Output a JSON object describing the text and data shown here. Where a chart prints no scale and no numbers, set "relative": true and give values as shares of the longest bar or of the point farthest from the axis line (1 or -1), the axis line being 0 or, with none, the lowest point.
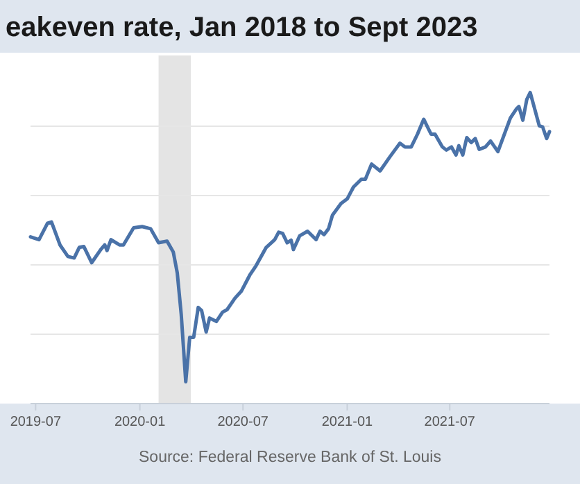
{
  "chart_data": {
    "type": "line",
    "title": "eakeven rate, Jan 2018 to Sept 2023",
    "relative": true,
    "grid": "y",
    "annotations": [
      "Source: Federal Reserve Bank of St. Louis"
    ],
    "xlim": [
      "2019-06-22",
      "2021-12-24"
    ],
    "xticks": [
      {
        "value": "2019-07-01",
        "label": "2019-07"
      },
      {
        "value": "2020-01-01",
        "label": "2020-01"
      },
      {
        "value": "2020-07-01",
        "label": "2020-07"
      },
      {
        "value": "2021-01-01",
        "label": "2021-01"
      },
      {
        "value": "2021-07-01",
        "label": "2021-07"
      }
    ],
    "bands": [
      {
        "axis": "x",
        "from": "2020-02-03",
        "to": "2020-03-31",
        "color": "#e4e4e4"
      }
    ],
    "series": [
      {
        "color": "#4a72a8",
        "x": [
          "2019-06-22",
          "2019-07-07",
          "2019-07-22",
          "2019-07-29",
          "2019-08-13",
          "2019-08-27",
          "2019-09-07",
          "2019-09-16",
          "2019-09-24",
          "2019-10-08",
          "2019-10-24",
          "2019-10-31",
          "2019-11-04",
          "2019-11-11",
          "2019-11-26",
          "2019-12-03",
          "2019-12-21",
          "2020-01-05",
          "2020-01-20",
          "2020-02-03",
          "2020-02-18",
          "2020-02-29",
          "2020-03-07",
          "2020-03-14",
          "2020-03-22",
          "2020-03-29",
          "2020-04-05",
          "2020-04-13",
          "2020-04-19",
          "2020-04-27",
          "2020-05-03",
          "2020-05-15",
          "2020-05-26",
          "2020-06-03",
          "2020-06-17",
          "2020-06-28",
          "2020-07-13",
          "2020-07-24",
          "2020-08-11",
          "2020-08-26",
          "2020-09-02",
          "2020-09-09",
          "2020-09-17",
          "2020-09-24",
          "2020-09-28",
          "2020-10-09",
          "2020-10-23",
          "2020-11-07",
          "2020-11-14",
          "2020-11-21",
          "2020-11-29",
          "2020-12-06",
          "2020-12-21",
          "2021-01-01",
          "2021-01-12",
          "2021-01-26",
          "2021-02-02",
          "2021-02-13",
          "2021-02-28",
          "2021-03-18",
          "2021-04-04",
          "2021-04-13",
          "2021-04-24",
          "2021-05-05",
          "2021-05-16",
          "2021-05-29",
          "2021-06-05",
          "2021-06-18",
          "2021-06-25",
          "2021-07-04",
          "2021-07-12",
          "2021-07-17",
          "2021-07-24",
          "2021-07-31",
          "2021-08-08",
          "2021-08-15",
          "2021-08-22",
          "2021-09-02",
          "2021-09-11",
          "2021-09-24",
          "2021-10-16",
          "2021-10-27",
          "2021-10-31",
          "2021-11-07",
          "2021-11-14",
          "2021-11-20",
          "2021-12-06",
          "2021-12-12",
          "2021-12-19",
          "2021-12-24"
        ],
        "values": [
          0.536,
          0.527,
          0.58,
          0.584,
          0.51,
          0.473,
          0.468,
          0.502,
          0.505,
          0.453,
          0.495,
          0.51,
          0.492,
          0.527,
          0.51,
          0.51,
          0.565,
          0.569,
          0.562,
          0.517,
          0.522,
          0.487,
          0.42,
          0.287,
          0.07,
          0.213,
          0.213,
          0.309,
          0.299,
          0.23,
          0.275,
          0.264,
          0.294,
          0.302,
          0.339,
          0.361,
          0.413,
          0.443,
          0.502,
          0.527,
          0.551,
          0.547,
          0.517,
          0.525,
          0.495,
          0.539,
          0.554,
          0.527,
          0.554,
          0.543,
          0.562,
          0.606,
          0.643,
          0.658,
          0.696,
          0.721,
          0.721,
          0.77,
          0.748,
          0.795,
          0.837,
          0.825,
          0.825,
          0.866,
          0.914,
          0.866,
          0.866,
          0.825,
          0.815,
          0.825,
          0.799,
          0.829,
          0.799,
          0.855,
          0.839,
          0.852,
          0.817,
          0.825,
          0.844,
          0.81,
          0.918,
          0.948,
          0.955,
          0.911,
          0.978,
          1,
          0.893,
          0.889,
          0.852,
          0.874
        ]
      }
    ]
  }
}
